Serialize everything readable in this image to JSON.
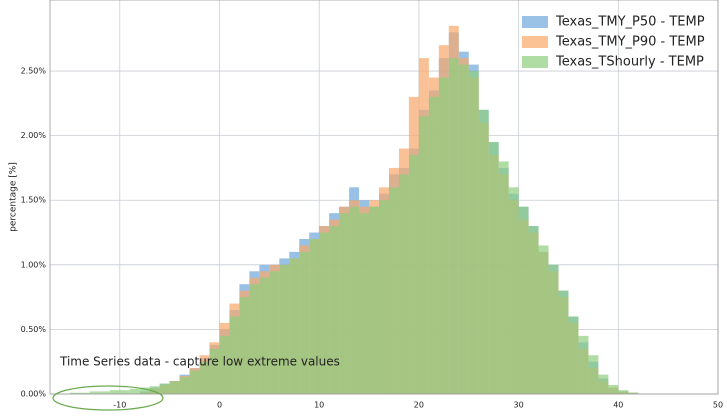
{
  "chart_data": {
    "type": "histogram",
    "ylabel": "percentage [%]",
    "annotation": "Time Series data - capture low extreme values",
    "bins": [
      -15,
      -14,
      -13,
      -12,
      -11,
      -10,
      -9,
      -8,
      -7,
      -6,
      -5,
      -4,
      -3,
      -2,
      -1,
      0,
      1,
      2,
      3,
      4,
      5,
      6,
      7,
      8,
      9,
      10,
      11,
      12,
      13,
      14,
      15,
      16,
      17,
      18,
      19,
      20,
      21,
      22,
      23,
      24,
      25,
      26,
      27,
      28,
      29,
      30,
      31,
      32,
      33,
      34,
      35,
      36,
      37,
      38,
      39,
      40,
      41,
      42
    ],
    "series": [
      {
        "name": "Texas_TMY_P50 - TEMP",
        "color": "#6fa8dc",
        "values": [
          0,
          0,
          0,
          0,
          0,
          0,
          0,
          0.02,
          0.05,
          0.08,
          0.1,
          0.15,
          0.2,
          0.28,
          0.38,
          0.5,
          0.65,
          0.85,
          0.95,
          1.0,
          1.0,
          1.05,
          1.1,
          1.2,
          1.25,
          1.3,
          1.4,
          1.45,
          1.6,
          1.5,
          1.45,
          1.55,
          1.7,
          1.75,
          1.9,
          2.2,
          2.35,
          2.6,
          2.8,
          2.65,
          2.55,
          2.2,
          1.95,
          1.75,
          1.55,
          1.45,
          1.3,
          1.1,
          1.0,
          0.8,
          0.6,
          0.4,
          0.25,
          0.12,
          0.05,
          0.02,
          0.01
        ]
      },
      {
        "name": "Texas_TMY_P90 - TEMP",
        "color": "#f9a86a",
        "values": [
          0,
          0,
          0,
          0,
          0,
          0,
          0,
          0.01,
          0.04,
          0.07,
          0.1,
          0.14,
          0.2,
          0.3,
          0.4,
          0.55,
          0.7,
          0.8,
          0.9,
          0.95,
          1.0,
          1.0,
          1.05,
          1.15,
          1.2,
          1.3,
          1.35,
          1.45,
          1.5,
          1.45,
          1.5,
          1.6,
          1.75,
          1.9,
          2.3,
          2.6,
          2.45,
          2.7,
          2.85,
          2.6,
          2.45,
          2.1,
          1.85,
          1.7,
          1.5,
          1.35,
          1.25,
          1.1,
          0.95,
          0.75,
          0.55,
          0.35,
          0.2,
          0.1,
          0.05,
          0.02,
          0.01
        ]
      },
      {
        "name": "Texas_TShourly - TEMP",
        "color": "#8fcf7e",
        "values": [
          0.01,
          0.01,
          0.02,
          0.02,
          0.03,
          0.03,
          0.04,
          0.05,
          0.06,
          0.08,
          0.1,
          0.13,
          0.18,
          0.25,
          0.35,
          0.45,
          0.6,
          0.75,
          0.85,
          0.9,
          0.95,
          1.0,
          1.05,
          1.1,
          1.2,
          1.25,
          1.3,
          1.4,
          1.45,
          1.4,
          1.45,
          1.5,
          1.6,
          1.7,
          1.85,
          2.15,
          2.3,
          2.45,
          2.6,
          2.55,
          2.5,
          2.2,
          1.95,
          1.8,
          1.6,
          1.45,
          1.3,
          1.15,
          1.0,
          0.8,
          0.6,
          0.45,
          0.3,
          0.15,
          0.07,
          0.03,
          0.01
        ]
      }
    ],
    "xlim": [
      -17,
      50
    ],
    "xticks": [
      -10,
      0,
      10,
      20,
      30,
      40,
      50
    ],
    "ylim": [
      0,
      3.05
    ],
    "yticks": [
      {
        "value": 0,
        "label": "0.00%"
      },
      {
        "value": 0.5,
        "label": "0.50%"
      },
      {
        "value": 1.0,
        "label": "1.00%"
      },
      {
        "value": 1.5,
        "label": "1.50%"
      },
      {
        "value": 2.0,
        "label": "2.00%"
      },
      {
        "value": 2.5,
        "label": "2.50%"
      }
    ],
    "grid": true,
    "legend": "upper right"
  }
}
